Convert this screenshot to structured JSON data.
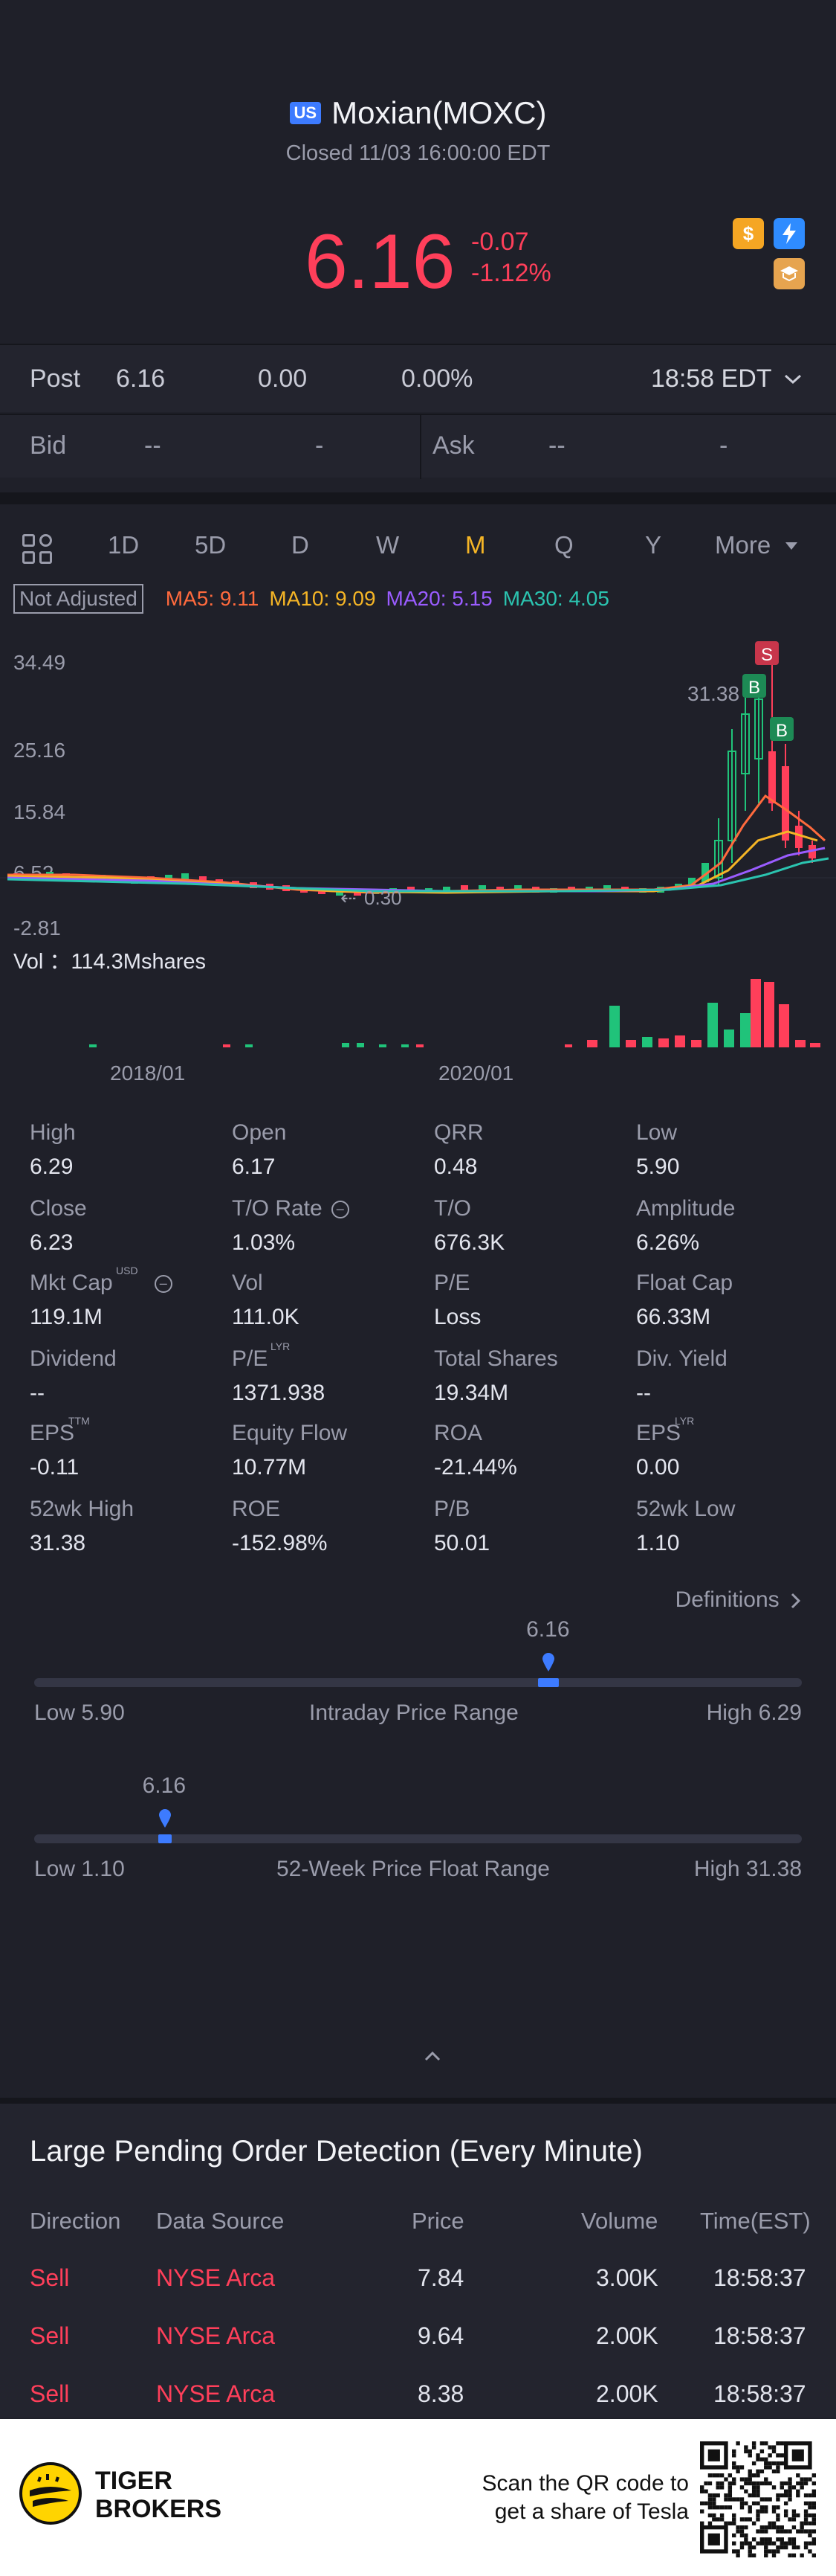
{
  "header": {
    "market_badge": "US",
    "stock_name": "Moxian(MOXC)",
    "status": "Closed 11/03 16:00:00 EDT",
    "price": "6.16",
    "change": "-0.07",
    "change_pct": "-1.12%",
    "icons": [
      "dollar-icon",
      "flash-icon",
      "education-icon"
    ]
  },
  "post": {
    "label": "Post",
    "price": "6.16",
    "change": "0.00",
    "change_pct": "0.00%",
    "time": "18:58 EDT"
  },
  "bid_ask": {
    "bid_label": "Bid",
    "bid_price": "--",
    "bid_size": "-",
    "ask_label": "Ask",
    "ask_price": "--",
    "ask_size": "-"
  },
  "tabs": {
    "items": [
      "1D",
      "5D",
      "D",
      "W",
      "M",
      "Q",
      "Y",
      "More"
    ],
    "active": "M"
  },
  "ma": {
    "not_adjusted": "Not Adjusted",
    "ma5": "MA5: 9.11",
    "ma10": "MA10: 9.09",
    "ma20": "MA20: 5.15",
    "ma30": "MA30: 4.05",
    "colors": {
      "ma5": "#ff6a3d",
      "ma10": "#f5b526",
      "ma20": "#9a5cff",
      "ma30": "#2bc4b0"
    }
  },
  "chart_labels": {
    "y_ticks": [
      "34.49",
      "25.16",
      "15.84",
      "6.52",
      "-2.81"
    ],
    "high_label": "31.38",
    "low_label": "0.30",
    "vol": "Vol ：114.3Mshares",
    "x_ticks": [
      "2018/01",
      "2020/01"
    ],
    "markers": [
      "S",
      "B",
      "B"
    ]
  },
  "chart_data": {
    "type": "candlestick",
    "ylim": [
      -2.81,
      34.49
    ],
    "y_ticks": [
      34.49,
      25.16,
      15.84,
      6.52,
      -2.81
    ],
    "x_ticks": [
      "2018/01",
      "2020/01"
    ],
    "annotations": [
      "31.38",
      "0.30"
    ],
    "volume_label": "Vol ：114.3Mshares"
  },
  "stats": [
    {
      "label": "High",
      "value": "6.29"
    },
    {
      "label": "Open",
      "value": "6.17"
    },
    {
      "label": "QRR",
      "value": "0.48"
    },
    {
      "label": "Low",
      "value": "5.90"
    },
    {
      "label": "Close",
      "value": "6.23"
    },
    {
      "label": "T/O Rate",
      "value": "1.03%"
    },
    {
      "label": "T/O",
      "value": "676.3K"
    },
    {
      "label": "Amplitude",
      "value": "6.26%"
    },
    {
      "label": "Mkt Cap",
      "value": "119.1M",
      "sup": "USD"
    },
    {
      "label": "Vol",
      "value": "111.0K"
    },
    {
      "label": "P/E",
      "value": "Loss"
    },
    {
      "label": "Float Cap",
      "value": "66.33M"
    },
    {
      "label": "Dividend",
      "value": "--"
    },
    {
      "label": "P/E",
      "value": "1371.938",
      "sup": "LYR"
    },
    {
      "label": "Total Shares",
      "value": "19.34M"
    },
    {
      "label": "Div. Yield",
      "value": "--"
    },
    {
      "label": "EPS",
      "value": "-0.11",
      "sup": "TTM"
    },
    {
      "label": "Equity Flow",
      "value": "10.77M"
    },
    {
      "label": "ROA",
      "value": "-21.44%"
    },
    {
      "label": "EPS",
      "value": "0.00",
      "sup": "LYR"
    },
    {
      "label": "52wk High",
      "value": "31.38"
    },
    {
      "label": "ROE",
      "value": "-152.98%"
    },
    {
      "label": "P/B",
      "value": "50.01"
    },
    {
      "label": "52wk Low",
      "value": "1.10"
    }
  ],
  "definitions": "Definitions",
  "intraday_range": {
    "current": "6.16",
    "low": "Low 5.90",
    "title": "Intraday Price Range",
    "high": "High 6.29",
    "position": 0.67
  },
  "week52_range": {
    "current": "6.16",
    "low": "Low 1.10",
    "title": "52-Week Price Float Range",
    "high": "High 31.38",
    "position": 0.17
  },
  "orders": {
    "title": "Large Pending Order Detection (Every Minute)",
    "headers": [
      "Direction",
      "Data Source",
      "Price",
      "Volume",
      "Time(EST)"
    ],
    "rows": [
      {
        "direction": "Sell",
        "source": "NYSE Arca",
        "price": "7.84",
        "volume": "3.00K",
        "time": "18:58:37"
      },
      {
        "direction": "Sell",
        "source": "NYSE Arca",
        "price": "9.64",
        "volume": "2.00K",
        "time": "18:58:37"
      },
      {
        "direction": "Sell",
        "source": "NYSE Arca",
        "price": "8.38",
        "volume": "2.00K",
        "time": "18:58:37"
      }
    ]
  },
  "footer": {
    "brand_line1": "TIGER",
    "brand_line2": "BROKERS",
    "scan_line1": "Scan the QR code to",
    "scan_line2": "get a share of Tesla"
  }
}
